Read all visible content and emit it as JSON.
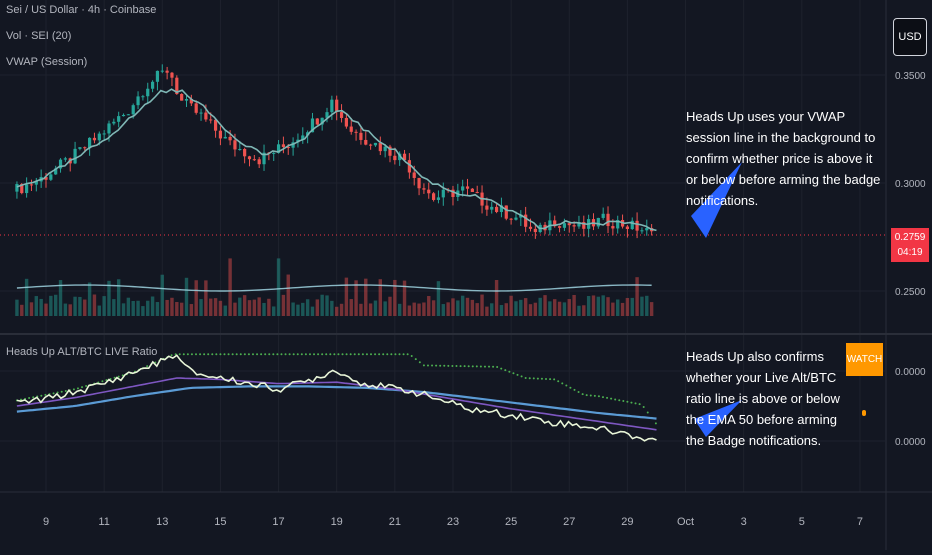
{
  "header": {
    "symbol_title": "Sei / US Dollar · 4h · Coinbase",
    "volume_label": "Vol · SEI (20)",
    "vwap_label": "VWAP (Session)"
  },
  "currency_button": "USD",
  "last_price": {
    "value": "0.2759",
    "countdown": "04:19"
  },
  "annotations": {
    "top": "Heads Up uses your VWAP session line in the background to confirm whether price is above it or below before arming the badge notifications.",
    "bottom": "Heads Up also confirms whether your Live Alt/BTC ratio line is above or below the EMA 50 before arming the Badge notifications."
  },
  "indicator": {
    "title": "Heads Up ALT/BTC LIVE Ratio",
    "badge": "WATCH"
  },
  "colors": {
    "background": "#131722",
    "grid": "#1e222d",
    "up": "#26a69a",
    "down": "#ef5350",
    "vwap": "#7fb7b5",
    "ratio_line": "#e8f5d8",
    "ema_fast": "#7e57c2",
    "ema_slow": "#5b9bd5",
    "dots": "#4caf50",
    "badge": "#ff9800",
    "arrow": "#2962ff",
    "price_tag": "#f23645"
  },
  "chart_data": [
    {
      "type": "candlestick",
      "title": "Sei / US Dollar · 4h · Coinbase",
      "y_ticks": [
        "0.3500",
        "0.3000",
        "0.2500"
      ],
      "x_ticks": [
        "9",
        "11",
        "13",
        "15",
        "17",
        "19",
        "21",
        "23",
        "25",
        "27",
        "29",
        "Oct",
        "3",
        "5",
        "7"
      ],
      "current_price": 0.2759,
      "close_path": [
        [
          8,
          0.296
        ],
        [
          9,
          0.302
        ],
        [
          10,
          0.311
        ],
        [
          11,
          0.322
        ],
        [
          12,
          0.334
        ],
        [
          12.6,
          0.345
        ],
        [
          13.4,
          0.353
        ],
        [
          13.8,
          0.338
        ],
        [
          14.5,
          0.331
        ],
        [
          15.5,
          0.318
        ],
        [
          16.5,
          0.311
        ],
        [
          17.5,
          0.318
        ],
        [
          18.5,
          0.33
        ],
        [
          19.0,
          0.338
        ],
        [
          19.6,
          0.325
        ],
        [
          20.5,
          0.318
        ],
        [
          21.5,
          0.311
        ],
        [
          22.0,
          0.3
        ],
        [
          22.5,
          0.293
        ],
        [
          23.5,
          0.297
        ],
        [
          24.5,
          0.289
        ],
        [
          25.5,
          0.283
        ],
        [
          26.0,
          0.276
        ],
        [
          26.6,
          0.283
        ],
        [
          27.6,
          0.279
        ],
        [
          28.3,
          0.283
        ],
        [
          29.0,
          0.281
        ],
        [
          29.6,
          0.279
        ],
        [
          30.0,
          0.276
        ]
      ],
      "vwap": [
        [
          8,
          0.298
        ],
        [
          9,
          0.303
        ],
        [
          10,
          0.311
        ],
        [
          11,
          0.32
        ],
        [
          12,
          0.331
        ],
        [
          13,
          0.343
        ],
        [
          13.8,
          0.342
        ],
        [
          14.5,
          0.334
        ],
        [
          15.5,
          0.321
        ],
        [
          16.5,
          0.313
        ],
        [
          17.5,
          0.317
        ],
        [
          18.5,
          0.328
        ],
        [
          19.2,
          0.334
        ],
        [
          20,
          0.324
        ],
        [
          21,
          0.315
        ],
        [
          22,
          0.302
        ],
        [
          23,
          0.296
        ],
        [
          24,
          0.293
        ],
        [
          25,
          0.287
        ],
        [
          26,
          0.279
        ],
        [
          27,
          0.282
        ],
        [
          28,
          0.281
        ],
        [
          29,
          0.282
        ],
        [
          30,
          0.279
        ]
      ]
    },
    {
      "type": "bar",
      "title": "Vol · SEI (20)",
      "note": "volume histogram with 20-period moving average line"
    },
    {
      "type": "line",
      "title": "Heads Up ALT/BTC LIVE Ratio",
      "y_ticks": [
        "0.0000",
        "0.0000"
      ],
      "series": [
        {
          "values": [
            [
              8,
              0.52
            ],
            [
              9,
              0.55
            ],
            [
              10,
              0.6
            ],
            [
              11,
              0.66
            ],
            [
              12,
              0.74
            ],
            [
              13,
              0.82
            ],
            [
              13.4,
              0.87
            ],
            [
              14,
              0.74
            ],
            [
              15,
              0.7
            ],
            [
              16,
              0.66
            ],
            [
              17,
              0.62
            ],
            [
              18,
              0.68
            ],
            [
              19,
              0.76
            ],
            [
              19.6,
              0.68
            ],
            [
              20.5,
              0.64
            ],
            [
              21.5,
              0.61
            ],
            [
              22.5,
              0.55
            ],
            [
              23.5,
              0.48
            ],
            [
              24.5,
              0.45
            ],
            [
              25.5,
              0.42
            ],
            [
              26.5,
              0.38
            ],
            [
              27.5,
              0.36
            ],
            [
              28.5,
              0.32
            ],
            [
              29.5,
              0.27
            ],
            [
              30,
              0.26
            ]
          ]
        },
        {
          "values": [
            [
              8,
              0.5
            ],
            [
              10,
              0.56
            ],
            [
              12,
              0.64
            ],
            [
              13.5,
              0.7
            ],
            [
              15,
              0.69
            ],
            [
              17,
              0.66
            ],
            [
              19,
              0.67
            ],
            [
              21,
              0.62
            ],
            [
              23,
              0.55
            ],
            [
              25,
              0.48
            ],
            [
              27,
              0.42
            ],
            [
              29,
              0.36
            ],
            [
              30,
              0.33
            ]
          ]
        },
        {
          "values": [
            [
              8,
              0.46
            ],
            [
              10,
              0.5
            ],
            [
              12,
              0.57
            ],
            [
              14,
              0.63
            ],
            [
              16,
              0.64
            ],
            [
              18,
              0.64
            ],
            [
              20,
              0.63
            ],
            [
              22,
              0.6
            ],
            [
              24,
              0.55
            ],
            [
              26,
              0.5
            ],
            [
              28,
              0.45
            ],
            [
              30,
              0.41
            ]
          ]
        },
        {
          "values": [
            [
              8,
              0.54
            ],
            [
              10,
              0.62
            ],
            [
              12,
              0.74
            ],
            [
              13.4,
              0.87
            ],
            [
              21.5,
              0.87
            ],
            [
              22,
              0.79
            ],
            [
              24.5,
              0.78
            ],
            [
              25.5,
              0.7
            ],
            [
              26.5,
              0.69
            ],
            [
              27.5,
              0.58
            ],
            [
              28,
              0.57
            ],
            [
              29.5,
              0.51
            ],
            [
              30,
              0.37
            ]
          ]
        }
      ]
    }
  ]
}
